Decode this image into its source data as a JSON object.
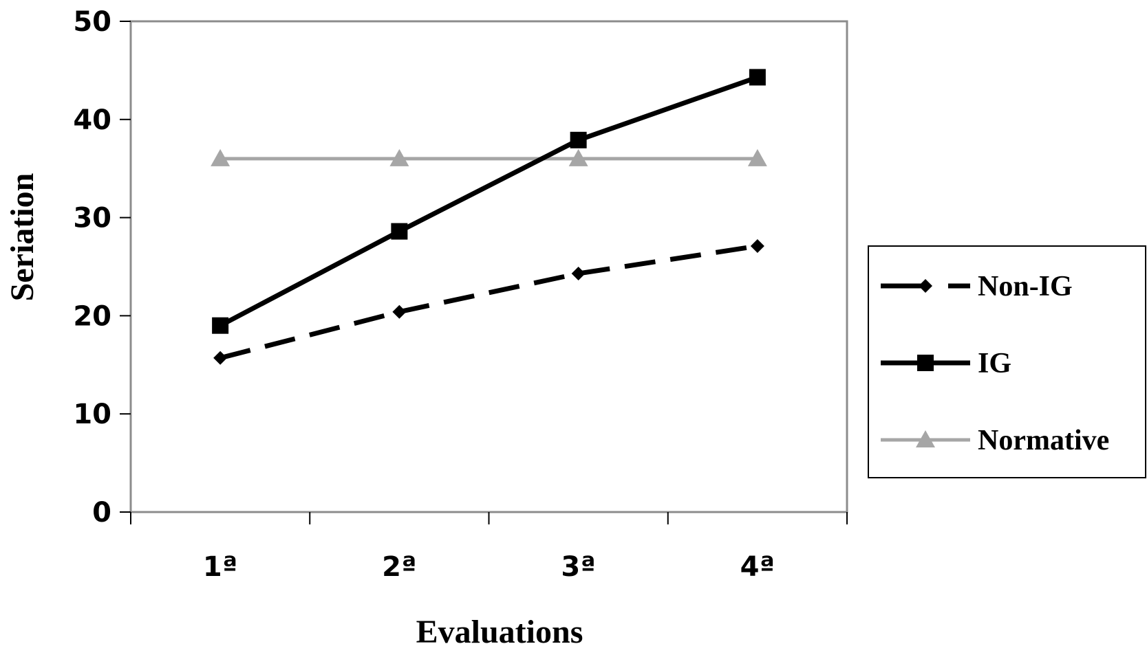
{
  "chart_data": {
    "type": "line",
    "title": "",
    "xlabel": "Evaluations",
    "ylabel": "Seriation",
    "categories": [
      "1ª",
      "2ª",
      "3ª",
      "4ª"
    ],
    "ylim": [
      0,
      50
    ],
    "yticks": [
      0,
      10,
      20,
      30,
      40,
      50
    ],
    "grid": false,
    "legend_position": "right",
    "series": [
      {
        "name": "Non-IG",
        "values": [
          15.7,
          20.4,
          24.3,
          27.1
        ],
        "color": "#000000",
        "line_style": "dashed",
        "marker": "diamond"
      },
      {
        "name": "IG",
        "values": [
          19.0,
          28.6,
          37.9,
          44.3
        ],
        "color": "#000000",
        "line_style": "solid",
        "marker": "square"
      },
      {
        "name": "Normative",
        "values": [
          36.0,
          36.0,
          36.0,
          36.0
        ],
        "color": "#a6a6a6",
        "line_style": "solid",
        "marker": "triangle"
      }
    ]
  }
}
